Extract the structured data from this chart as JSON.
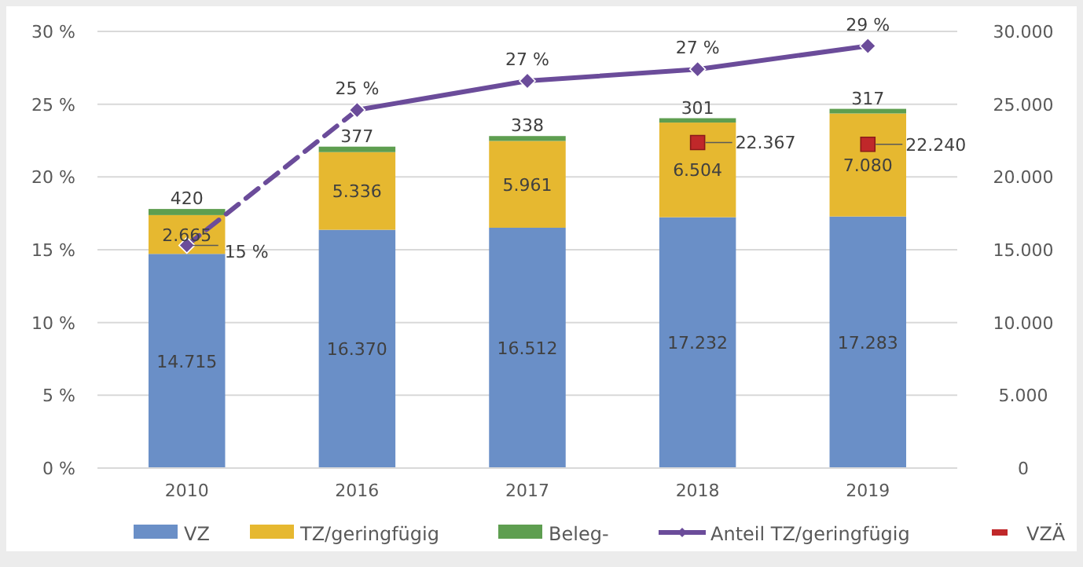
{
  "chart_data": {
    "type": "bar",
    "stacked": true,
    "categories": [
      "2010",
      "2016",
      "2017",
      "2018",
      "2019"
    ],
    "ylim": [
      0,
      30
    ],
    "yticks": [
      {
        "value": 0,
        "label": "0 %"
      },
      {
        "value": 5,
        "label": "5 %"
      },
      {
        "value": 10,
        "label": "10 %"
      },
      {
        "value": 15,
        "label": "15 %"
      },
      {
        "value": 20,
        "label": "20 %"
      },
      {
        "value": 25,
        "label": "25 %"
      },
      {
        "value": 30,
        "label": "30 %"
      }
    ],
    "y2lim": [
      0,
      30000
    ],
    "y2ticks": [
      0,
      {
        "value": 5000,
        "label": "5.000"
      },
      {
        "value": 10000,
        "label": "10.000"
      },
      {
        "value": 15000,
        "label": "15.000"
      },
      {
        "value": 20000,
        "label": "20.000"
      },
      {
        "value": 25000,
        "label": "25.000"
      },
      {
        "value": 30000,
        "label": "30.000"
      }
    ],
    "grid": "y",
    "legend": "bottom",
    "series": [
      {
        "name": "VZ",
        "axis": "y2",
        "color": "#6a8fc7",
        "values": [
          14715,
          16370,
          16512,
          17232,
          17283
        ],
        "value_labels": [
          "14.715",
          "16.370",
          "16.512",
          "17.232",
          "17.283"
        ]
      },
      {
        "name": "TZ/geringfügig",
        "axis": "y2",
        "color": "#e6b830",
        "values": [
          2665,
          5336,
          5961,
          6504,
          7080
        ],
        "value_labels": [
          "2.665",
          "5.336",
          "5.961",
          "6.504",
          "7.080"
        ]
      },
      {
        "name": "Beleg-",
        "axis": "y2",
        "color": "#5e9e50",
        "values": [
          420,
          377,
          338,
          301,
          317
        ],
        "value_labels": [
          "420",
          "377",
          "338",
          "301",
          "317"
        ]
      },
      {
        "type": "line",
        "axis": "y",
        "color": "#6b4c9a",
        "line_style": "dashed",
        "marker": "diamond",
        "values": [
          15.3,
          24.6,
          null,
          null,
          null
        ],
        "value_labels": [
          "15 %",
          null,
          null,
          null,
          null
        ]
      },
      {
        "name": "Anteil TZ/geringfügig",
        "type": "line",
        "axis": "y",
        "color": "#6b4c9a",
        "line_style": "solid",
        "marker": "diamond",
        "values": [
          null,
          24.6,
          26.6,
          27.4,
          29.0
        ],
        "value_labels": [
          null,
          "25 %",
          "27 %",
          "27 %",
          "29 %"
        ]
      },
      {
        "name": "VZÄ",
        "type": "scatter",
        "axis": "y2",
        "color": "#c0282a",
        "marker": "square",
        "values": [
          null,
          null,
          null,
          22367,
          22240
        ],
        "value_labels": [
          null,
          null,
          null,
          "22.367",
          "22.240"
        ]
      }
    ]
  }
}
